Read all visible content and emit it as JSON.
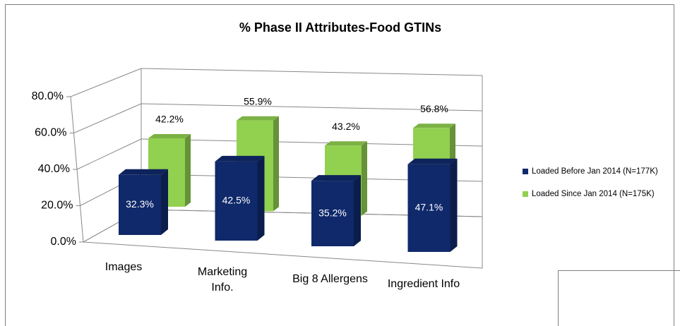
{
  "chart_data": {
    "type": "bar3d",
    "title": "% Phase II Attributes-Food GTINs",
    "categories": [
      "Images",
      "Marketing Info.",
      "Big 8 Allergens",
      "Ingredient Info"
    ],
    "series": [
      {
        "name": "Loaded Before Jan 2014 (N=177K)",
        "color": "#10296b",
        "values": [
          32.3,
          42.5,
          35.2,
          47.1
        ],
        "value_labels": [
          "32.3%",
          "42.5%",
          "35.2%",
          "47.1%"
        ]
      },
      {
        "name": "Loaded Since Jan 2014 (N=175K)",
        "color": "#92d050",
        "values": [
          42.2,
          55.9,
          43.2,
          56.8
        ],
        "value_labels": [
          "42.2%",
          "55.9%",
          "43.2%",
          "56.8%"
        ]
      }
    ],
    "ylim": [
      0,
      80
    ],
    "yticks": [
      {
        "value": 0,
        "label": "0.0%"
      },
      {
        "value": 20,
        "label": "20.0%"
      },
      {
        "value": 40,
        "label": "40.0%"
      },
      {
        "value": 60,
        "label": "60.0%"
      },
      {
        "value": 80,
        "label": "80.0%"
      }
    ],
    "grid": true,
    "legend": "right"
  }
}
